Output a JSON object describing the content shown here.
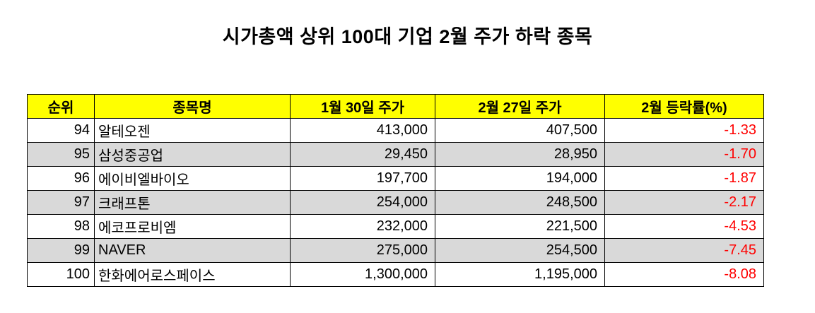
{
  "title": "시가총액 상위 100대 기업 2월 주가 하락 종목",
  "colors": {
    "header_bg": "#ffff00",
    "alt_row_bg": "#d9d9d9",
    "negative_text": "#ff0000",
    "border": "#000000"
  },
  "chart_data": {
    "type": "table",
    "title": "시가총액 상위 100대 기업 2월 주가 하락 종목",
    "columns": [
      "순위",
      "종목명",
      "1월 30일 주가",
      "2월 27일 주가",
      "2월 등락률(%)"
    ],
    "rows": [
      {
        "rank": "94",
        "name": "알테오젠",
        "jan30": "413,000",
        "feb27": "407,500",
        "change": "-1.33"
      },
      {
        "rank": "95",
        "name": "삼성중공업",
        "jan30": "29,450",
        "feb27": "28,950",
        "change": "-1.70"
      },
      {
        "rank": "96",
        "name": "에이비엘바이오",
        "jan30": "197,700",
        "feb27": "194,000",
        "change": "-1.87"
      },
      {
        "rank": "97",
        "name": "크래프톤",
        "jan30": "254,000",
        "feb27": "248,500",
        "change": "-2.17"
      },
      {
        "rank": "98",
        "name": "에코프로비엠",
        "jan30": "232,000",
        "feb27": "221,500",
        "change": "-4.53"
      },
      {
        "rank": "99",
        "name": "NAVER",
        "jan30": "275,000",
        "feb27": "254,500",
        "change": "-7.45"
      },
      {
        "rank": "100",
        "name": "한화에어로스페이스",
        "jan30": "1,300,000",
        "feb27": "1,195,000",
        "change": "-8.08"
      }
    ]
  }
}
